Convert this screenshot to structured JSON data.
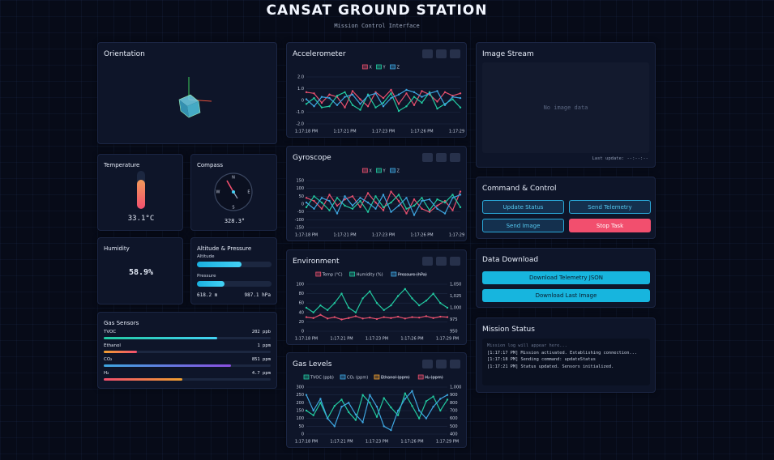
{
  "header": {
    "title": "CANSAT GROUND STATION",
    "subtitle": "Mission Control Interface"
  },
  "orientation": {
    "title": "Orientation"
  },
  "temperature": {
    "title": "Temperature",
    "value": "33.1°C"
  },
  "compass": {
    "title": "Compass",
    "value": "328.3°",
    "labels": [
      "N",
      "E",
      "S",
      "W"
    ]
  },
  "humidity": {
    "title": "Humidity",
    "value": "58.9%"
  },
  "altitude_pressure": {
    "title": "Altitude & Pressure",
    "altitude_label": "Altitude",
    "pressure_label": "Pressure",
    "altitude": "618.2 m",
    "pressure": "987.1 hPa"
  },
  "gas_sensors": {
    "title": "Gas Sensors",
    "rows": [
      {
        "name": "TVOC",
        "value": "202 ppb"
      },
      {
        "name": "Ethanol",
        "value": "1 ppm"
      },
      {
        "name": "CO₂",
        "value": "851 ppm"
      },
      {
        "name": "H₂",
        "value": "4.7 ppm"
      }
    ]
  },
  "image_stream": {
    "title": "Image Stream",
    "placeholder": "No image data",
    "last_update": "Last update: --:--:--"
  },
  "command_control": {
    "title": "Command & Control",
    "buttons": [
      "Update Status",
      "Send Telemetry",
      "Send Image",
      "Stop Task"
    ]
  },
  "data_download": {
    "title": "Data Download",
    "buttons": [
      "Download Telemetry JSON",
      "Download Last Image"
    ]
  },
  "mission_status": {
    "title": "Mission Status",
    "log": [
      "Mission log will appear here...",
      "[1:17:17 PM] Mission activated. Establishing connection...",
      "[1:17:18 PM] Sending command: updateStatus",
      "[1:17:21 PM] Status updated. Sensors initialized."
    ]
  },
  "chart_data": [
    {
      "type": "line",
      "title": "Accelerometer",
      "categories": [
        "1:17:18 PM",
        null,
        null,
        null,
        null,
        "1:17:21 PM",
        null,
        null,
        null,
        null,
        "1:17:23 PM",
        null,
        null,
        null,
        null,
        "1:17:26 PM",
        null,
        null,
        null,
        null,
        "1:17:29 PM"
      ],
      "ylim": [
        -2,
        2
      ],
      "yticks": [
        {
          "value": 2,
          "label": "2.0"
        },
        {
          "value": 1,
          "label": "1.0"
        },
        0,
        {
          "value": -1,
          "label": "-1.0"
        },
        {
          "value": -2,
          "label": "-2.0"
        }
      ],
      "grid": true,
      "series": [
        {
          "name": "X",
          "color": "#e8506e",
          "values": [
            0.7,
            0.6,
            -0.2,
            0.5,
            0.3,
            -0.6,
            0.8,
            0.1,
            -0.5,
            0.7,
            0.2,
            0.9,
            -0.3,
            0.6,
            -0.4,
            0.8,
            0.5,
            -0.1,
            0.7,
            0.4,
            0.6
          ]
        },
        {
          "name": "Y",
          "color": "#22c9a0",
          "values": [
            -0.3,
            0.2,
            -0.6,
            -0.5,
            0.4,
            0.7,
            -0.4,
            -0.8,
            0.5,
            -0.6,
            -0.2,
            0.6,
            -0.9,
            -0.5,
            0.3,
            -0.2,
            0.7,
            -0.7,
            -0.3,
            0.1,
            -0.6
          ]
        },
        {
          "name": "Z",
          "color": "#3ea6e0",
          "values": [
            0.1,
            -0.5,
            0.3,
            0.2,
            -0.4,
            0.3,
            0.5,
            -0.3,
            0.4,
            0.6,
            -0.5,
            0.2,
            0.5,
            0.9,
            0.7,
            0.3,
            0.6,
            0.8,
            -0.4,
            0.3,
            0.2
          ]
        }
      ]
    },
    {
      "type": "line",
      "title": "Gyroscope",
      "categories": [
        "1:17:18 PM",
        null,
        null,
        null,
        null,
        "1:17:21 PM",
        null,
        null,
        null,
        null,
        "1:17:23 PM",
        null,
        null,
        null,
        null,
        "1:17:26 PM",
        null,
        null,
        null,
        null,
        "1:17:29 PM"
      ],
      "ylim": [
        -150,
        150
      ],
      "yticks": [
        150,
        100,
        50,
        0,
        -50,
        -100,
        -150
      ],
      "grid": true,
      "series": [
        {
          "name": "X",
          "color": "#e8506e",
          "values": [
            40,
            20,
            -30,
            60,
            -10,
            30,
            50,
            -20,
            70,
            10,
            -40,
            80,
            20,
            -60,
            30,
            -30,
            -50,
            -10,
            20,
            -40,
            80
          ]
        },
        {
          "name": "Y",
          "color": "#22c9a0",
          "values": [
            -20,
            50,
            10,
            -40,
            40,
            -10,
            -30,
            20,
            -50,
            50,
            -20,
            10,
            60,
            -30,
            -10,
            40,
            -40,
            30,
            10,
            60,
            -20
          ]
        },
        {
          "name": "Z",
          "color": "#3ea6e0",
          "values": [
            10,
            -30,
            40,
            20,
            -60,
            50,
            -10,
            40,
            10,
            -30,
            60,
            -50,
            -10,
            40,
            -70,
            20,
            30,
            -30,
            -60,
            40,
            60
          ]
        }
      ]
    },
    {
      "type": "line",
      "title": "Environment",
      "categories": [
        "1:17:18 PM",
        null,
        null,
        null,
        null,
        "1:17:21 PM",
        null,
        null,
        null,
        null,
        "1:17:23 PM",
        null,
        null,
        null,
        null,
        "1:17:26 PM",
        null,
        null,
        null,
        null,
        "1:17:29 PM"
      ],
      "ylim": [
        0,
        100
      ],
      "yticks": [
        100,
        80,
        60,
        40,
        20,
        0
      ],
      "y2lim": [
        950,
        1050
      ],
      "y2ticks": [
        {
          "value": 1050,
          "label": "1,050"
        },
        {
          "value": 1025,
          "label": "1,025"
        },
        {
          "value": 1000,
          "label": "1,000"
        },
        975,
        950
      ],
      "grid": true,
      "series": [
        {
          "name": "Temp (°C)",
          "color": "#e8506e",
          "values": [
            30,
            28,
            35,
            27,
            30,
            25,
            28,
            32,
            27,
            29,
            26,
            30,
            28,
            31,
            27,
            30,
            29,
            32,
            28,
            31,
            30
          ]
        },
        {
          "name": "Humidity (%)",
          "color": "#22c9a0",
          "values": [
            50,
            40,
            55,
            45,
            60,
            80,
            50,
            40,
            70,
            85,
            60,
            45,
            55,
            75,
            90,
            70,
            55,
            65,
            80,
            60,
            50
          ]
        },
        {
          "name": "Pressure (hPa)",
          "color": "#3ea6e0",
          "axis": "y2",
          "hidden": true
        }
      ]
    },
    {
      "type": "line",
      "title": "Gas Levels",
      "categories": [
        "1:17:18 PM",
        null,
        null,
        null,
        null,
        "1:17:21 PM",
        null,
        null,
        null,
        null,
        "1:17:23 PM",
        null,
        null,
        null,
        null,
        "1:17:26 PM",
        null,
        null,
        null,
        null,
        "1:17:29 PM"
      ],
      "ylim": [
        0,
        300
      ],
      "yticks": [
        300,
        250,
        200,
        150,
        100,
        50,
        0
      ],
      "y2lim": [
        400,
        1000
      ],
      "y2ticks": [
        {
          "value": 1000,
          "label": "1,000"
        },
        900,
        800,
        700,
        600,
        500,
        400
      ],
      "grid": true,
      "series": [
        {
          "name": "TVOC (ppb)",
          "color": "#22c9a0",
          "values": [
            150,
            120,
            200,
            100,
            180,
            220,
            140,
            90,
            250,
            200,
            110,
            230,
            170,
            120,
            260,
            180,
            100,
            210,
            240,
            150,
            220
          ]
        },
        {
          "name": "CO₂ (ppm)",
          "color": "#3ea6e0",
          "axis": "y2",
          "values": [
            900,
            700,
            850,
            600,
            500,
            750,
            800,
            650,
            550,
            900,
            750,
            500,
            450,
            700,
            850,
            950,
            700,
            600,
            750,
            850,
            900
          ]
        },
        {
          "name": "Ethanol (ppm)",
          "color": "#f0a030",
          "hidden": true
        },
        {
          "name": "H₂ (ppm)",
          "color": "#e8506e",
          "hidden": true
        }
      ]
    }
  ]
}
